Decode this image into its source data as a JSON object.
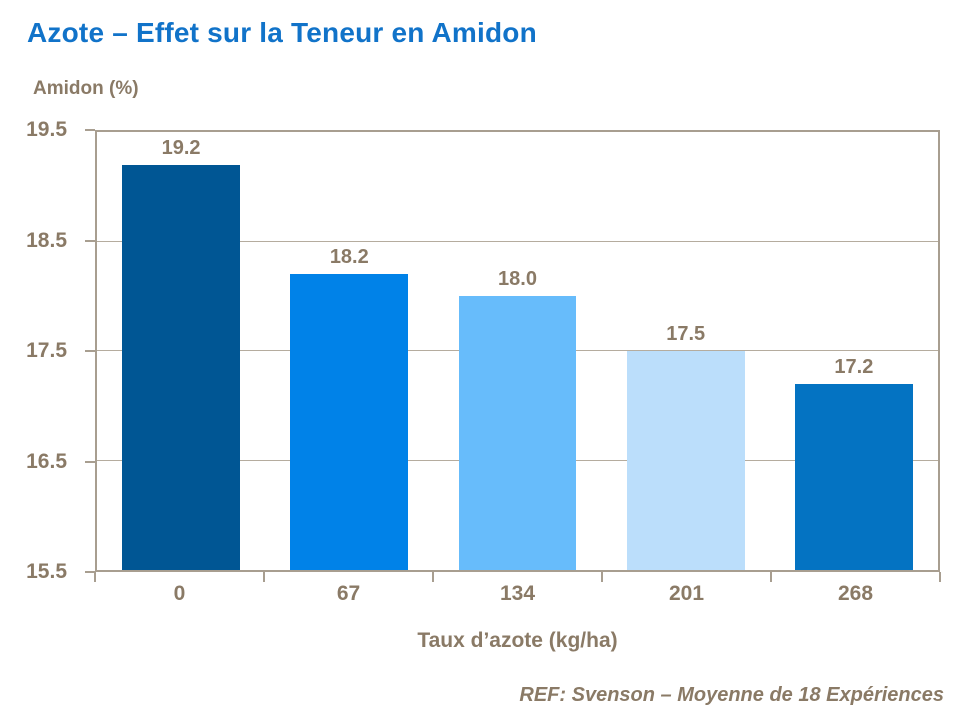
{
  "header": {
    "title": "Azote – Effet sur la Teneur en Amidon"
  },
  "footer": {
    "ref": "REF: Svenson – Moyenne de 18 Expériences"
  },
  "chart_data": {
    "type": "bar",
    "title": "Azote – Effet sur la Teneur en Amidon",
    "ylabel": "Amidon (%)",
    "xlabel": "Taux d’azote (kg/ha)",
    "categories": [
      "0",
      "67",
      "134",
      "201",
      "268"
    ],
    "values": [
      19.2,
      18.2,
      18.0,
      17.5,
      17.2
    ],
    "value_labels": [
      "19.2",
      "18.2",
      "18.0",
      "17.5",
      "17.2"
    ],
    "bar_colors": [
      "#005694",
      "#0082e8",
      "#67bcfb",
      "#bbdefb",
      "#0473c2"
    ],
    "ylim": [
      15.5,
      19.5
    ],
    "ytick_labels": [
      "19.5",
      "18.5",
      "17.5",
      "16.5",
      "15.5"
    ],
    "ytick_values": [
      19.5,
      18.5,
      17.5,
      16.5,
      15.5
    ],
    "gridlines": [
      18.5,
      17.5,
      16.5
    ],
    "grid": true,
    "legend": "none",
    "annotation": "REF: Svenson – Moyenne de 18 Expériences"
  },
  "colors": {
    "title": "#1173c9",
    "text": "#8a7a66",
    "axis": "#a89e90",
    "grid": "#b5ac9e"
  }
}
